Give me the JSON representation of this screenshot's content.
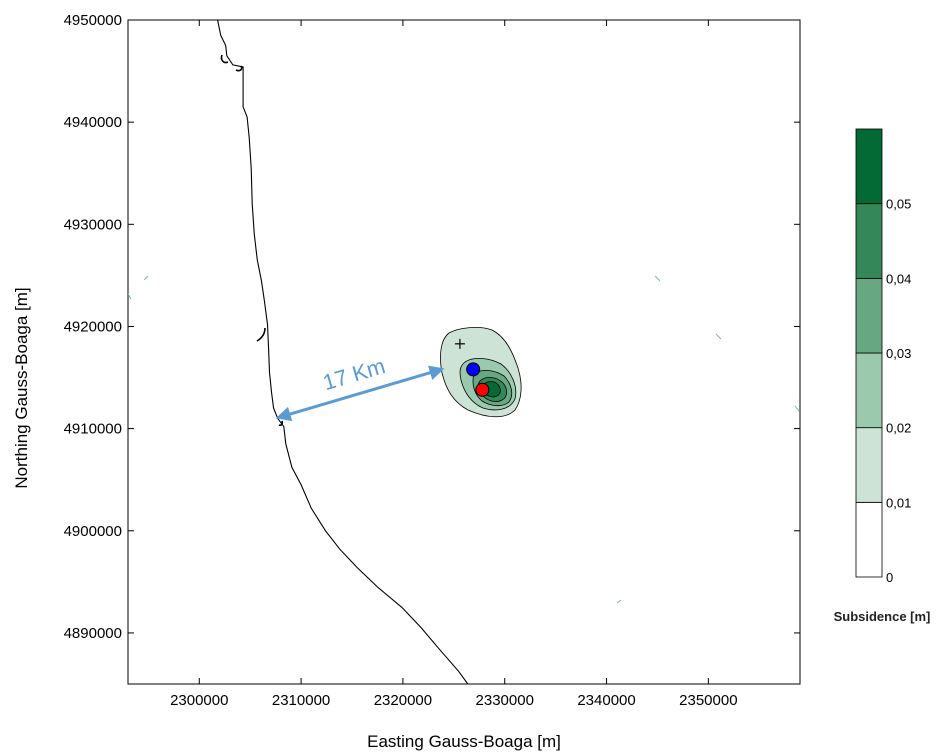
{
  "chart_data": {
    "type": "heatmap",
    "title": "",
    "xlabel": "Easting Gauss-Boaga [m]",
    "ylabel": "Northing Gauss-Boaga [m]",
    "xlim": [
      2293000,
      2359000
    ],
    "ylim": [
      4885000,
      4950000
    ],
    "x_ticks": [
      2300000,
      2310000,
      2320000,
      2330000,
      2340000,
      2350000
    ],
    "x_tick_labels": [
      "2300000",
      "2310000",
      "2320000",
      "2330000",
      "2340000",
      "2350000"
    ],
    "y_ticks": [
      4890000,
      4900000,
      4910000,
      4920000,
      4930000,
      4940000,
      4950000
    ],
    "y_tick_labels": [
      "4890000",
      "4900000",
      "4910000",
      "4920000",
      "4930000",
      "4940000",
      "4950000"
    ],
    "colorbar": {
      "title": "Subsidence [m]",
      "levels": [
        0,
        0.01,
        0.02,
        0.03,
        0.04,
        0.05
      ],
      "level_labels": [
        "0",
        "0,01",
        "0,02",
        "0,03",
        "0,04",
        "0,05"
      ],
      "max": 0.06,
      "colors": [
        "#ffffff",
        "#cde3d6",
        "#9ac9ad",
        "#67a882",
        "#348758",
        "#046a35"
      ]
    },
    "subsidence_peak": {
      "x": 2328200,
      "y": 4914200,
      "value": 0.06
    },
    "points": [
      {
        "name": "blue",
        "x": 2326900,
        "y": 4915800,
        "color": "#0000ff"
      },
      {
        "name": "red",
        "x": 2327800,
        "y": 4913800,
        "color": "#ff0000"
      }
    ],
    "cross_marker": {
      "x": 2325600,
      "y": 4918300
    },
    "distance_annotation": {
      "label": "17 Km",
      "from": {
        "x": 2307800,
        "y": 4911100
      },
      "to": {
        "x": 2323800,
        "y": 4915800
      },
      "color": "#5b9bd5"
    },
    "coastline": [
      [
        2301500,
        4951500
      ],
      [
        2302100,
        4948500
      ],
      [
        2302600,
        4947500
      ],
      [
        2302700,
        4946500
      ],
      [
        2303300,
        4945600
      ],
      [
        2304300,
        4945400
      ],
      [
        2304300,
        4943500
      ],
      [
        2304300,
        4941500
      ],
      [
        2304700,
        4940500
      ],
      [
        2304900,
        4938500
      ],
      [
        2305100,
        4935500
      ],
      [
        2305200,
        4932000
      ],
      [
        2305400,
        4929000
      ],
      [
        2305700,
        4926500
      ],
      [
        2306100,
        4924500
      ],
      [
        2306400,
        4922500
      ],
      [
        2306700,
        4920200
      ],
      [
        2306800,
        4918000
      ],
      [
        2306900,
        4915500
      ],
      [
        2307100,
        4913500
      ],
      [
        2307300,
        4912000
      ],
      [
        2307700,
        4911000
      ],
      [
        2308300,
        4910200
      ],
      [
        2308500,
        4908500
      ],
      [
        2309100,
        4906200
      ],
      [
        2310000,
        4904500
      ],
      [
        2311000,
        4902200
      ],
      [
        2312400,
        4900000
      ],
      [
        2313800,
        4898200
      ],
      [
        2315500,
        4896400
      ],
      [
        2317500,
        4894500
      ],
      [
        2319900,
        4892500
      ],
      [
        2321800,
        4890500
      ],
      [
        2323500,
        4888500
      ],
      [
        2325500,
        4886200
      ],
      [
        2327100,
        4884000
      ]
    ]
  }
}
